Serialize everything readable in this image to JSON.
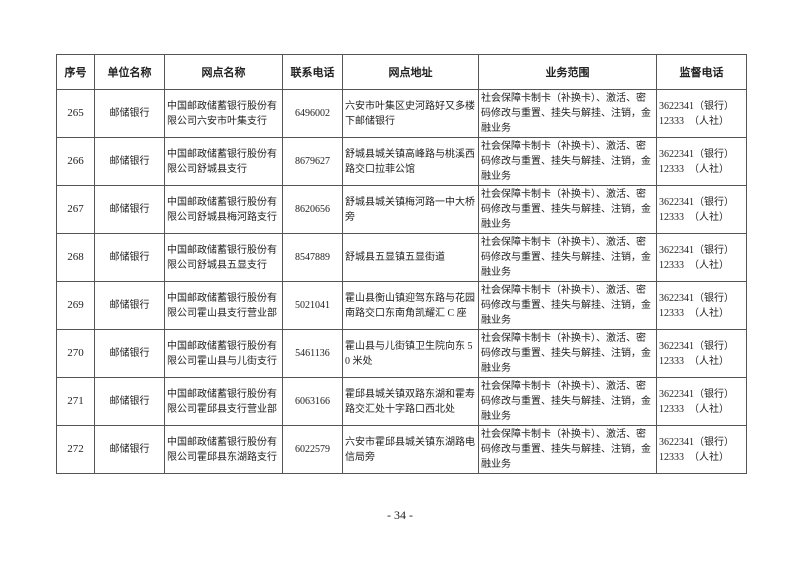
{
  "headers": [
    "序号",
    "单位名称",
    "网点名称",
    "联系电话",
    "网点地址",
    "业务范围",
    "监督电话"
  ],
  "rows": [
    {
      "no": "265",
      "unit": "邮储银行",
      "name": "中国邮政储蓄银行股份有限公司六安市叶集支行",
      "phone": "6496002",
      "address": "六安市叶集区史河路好又多楼下邮储银行",
      "scope": "社会保障卡制卡（补换卡）、激活、密码修改与重置、挂失与解挂、注销，金融业务",
      "mon1": "3622341（银行）",
      "mon2": "12333　（人社）"
    },
    {
      "no": "266",
      "unit": "邮储银行",
      "name": "中国邮政储蓄银行股份有限公司舒城县支行",
      "phone": "8679627",
      "address": "舒城县城关镇高峰路与桃溪西路交口拉菲公馆",
      "scope": "社会保障卡制卡（补换卡）、激活、密码修改与重置、挂失与解挂、注销，金融业务",
      "mon1": "3622341（银行）",
      "mon2": "12333　（人社）"
    },
    {
      "no": "267",
      "unit": "邮储银行",
      "name": "中国邮政储蓄银行股份有限公司舒城县梅河路支行",
      "phone": "8620656",
      "address": "舒城县城关镇梅河路一中大桥旁",
      "scope": "社会保障卡制卡（补换卡）、激活、密码修改与重置、挂失与解挂、注销，金融业务",
      "mon1": "3622341（银行）",
      "mon2": "12333　（人社）"
    },
    {
      "no": "268",
      "unit": "邮储银行",
      "name": "中国邮政储蓄银行股份有限公司舒城县五显支行",
      "phone": "8547889",
      "address": "舒城县五显镇五显街道",
      "scope": "社会保障卡制卡（补换卡）、激活、密码修改与重置、挂失与解挂、注销，金融业务",
      "mon1": "3622341（银行）",
      "mon2": "12333　（人社）"
    },
    {
      "no": "269",
      "unit": "邮储银行",
      "name": "中国邮政储蓄银行股份有限公司霍山县支行营业部",
      "phone": "5021041",
      "address": "霍山县衡山镇迎驾东路与花园南路交口东南角凯耀汇 C 座",
      "scope": "社会保障卡制卡（补换卡）、激活、密码修改与重置、挂失与解挂、注销，金融业务",
      "mon1": "3622341（银行）",
      "mon2": "12333　（人社）"
    },
    {
      "no": "270",
      "unit": "邮储银行",
      "name": "中国邮政储蓄银行股份有限公司霍山县与儿街支行",
      "phone": "5461136",
      "address": "霍山县与儿街镇卫生院向东 50 米处",
      "scope": "社会保障卡制卡（补换卡）、激活、密码修改与重置、挂失与解挂、注销，金融业务",
      "mon1": "3622341（银行）",
      "mon2": "12333　（人社）"
    },
    {
      "no": "271",
      "unit": "邮储银行",
      "name": "中国邮政储蓄银行股份有限公司霍邱县支行营业部",
      "phone": "6063166",
      "address": "霍邱县城关镇双路东湖和霍寿路交汇处十字路口西北处",
      "scope": "社会保障卡制卡（补换卡）、激活、密码修改与重置、挂失与解挂、注销，金融业务",
      "mon1": "3622341（银行）",
      "mon2": "12333　（人社）"
    },
    {
      "no": "272",
      "unit": "邮储银行",
      "name": "中国邮政储蓄银行股份有限公司霍邱县东湖路支行",
      "phone": "6022579",
      "address": "六安市霍邱县城关镇东湖路电信局旁",
      "scope": "社会保障卡制卡（补换卡）、激活、密码修改与重置、挂失与解挂、注销，金融业务",
      "mon1": "3622341（银行）",
      "mon2": "12333　（人社）"
    }
  ],
  "page_number": "- 34 -"
}
